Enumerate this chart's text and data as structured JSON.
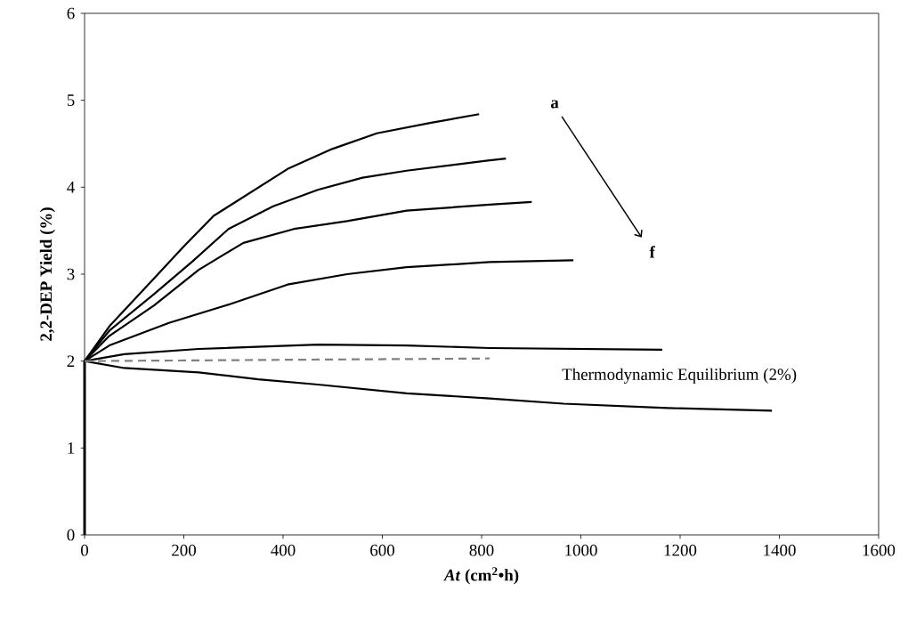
{
  "chart_data": {
    "type": "line",
    "xlabel": "*At* (cm$^{2}$•h)",
    "ylabel": "2,2-DEP Yield (%)",
    "xlim": [
      0,
      1600
    ],
    "ylim": [
      0,
      6
    ],
    "xticks": [
      0,
      200,
      400,
      600,
      800,
      1000,
      1200,
      1400,
      1600
    ],
    "yticks": [
      0,
      1,
      2,
      3,
      4,
      5,
      6
    ],
    "grid": false,
    "marker": "none",
    "series": [
      {
        "color": "#000000",
        "x": [
          0,
          0,
          50,
          140,
          200,
          260,
          409,
          499,
          589,
          696,
          795
        ],
        "values": [
          0,
          2,
          2.4,
          2.95,
          3.32,
          3.67,
          4.21,
          4.44,
          4.62,
          4.74,
          4.84
        ]
      },
      {
        "color": "#000000",
        "x": [
          0,
          0,
          50,
          140,
          218,
          290,
          380,
          470,
          560,
          649,
          816,
          849
        ],
        "values": [
          0,
          2,
          2.35,
          2.77,
          3.15,
          3.52,
          3.78,
          3.97,
          4.11,
          4.19,
          4.31,
          4.33
        ]
      },
      {
        "color": "#000000",
        "x": [
          0,
          0,
          50,
          140,
          230,
          320,
          422,
          529,
          649,
          816,
          901
        ],
        "values": [
          0,
          2,
          2.29,
          2.64,
          3.05,
          3.36,
          3.52,
          3.61,
          3.73,
          3.8,
          3.83
        ]
      },
      {
        "color": "#000000",
        "x": [
          0,
          0,
          50,
          170,
          290,
          409,
          529,
          649,
          709,
          816,
          985
        ],
        "values": [
          0,
          2,
          2.18,
          2.44,
          2.65,
          2.88,
          3.0,
          3.08,
          3.1,
          3.14,
          3.16
        ]
      },
      {
        "color": "#000000",
        "x": [
          0,
          0,
          80,
          230,
          470,
          649,
          816,
          1164
        ],
        "values": [
          0,
          2,
          2.08,
          2.14,
          2.19,
          2.18,
          2.15,
          2.13
        ]
      },
      {
        "color": "#000000",
        "x": [
          0,
          0,
          80,
          230,
          350,
          470,
          649,
          816,
          965,
          1175,
          1385
        ],
        "values": [
          0,
          2,
          1.92,
          1.87,
          1.79,
          1.73,
          1.63,
          1.57,
          1.51,
          1.46,
          1.43
        ]
      },
      {
        "color": "#808080",
        "line_style": "dashed",
        "x": [
          0,
          816
        ],
        "values": [
          2,
          2.03
        ]
      }
    ],
    "annotations": [
      "**a**",
      "**f**",
      "Thermodynamic Equilibrium (2%)"
    ]
  }
}
